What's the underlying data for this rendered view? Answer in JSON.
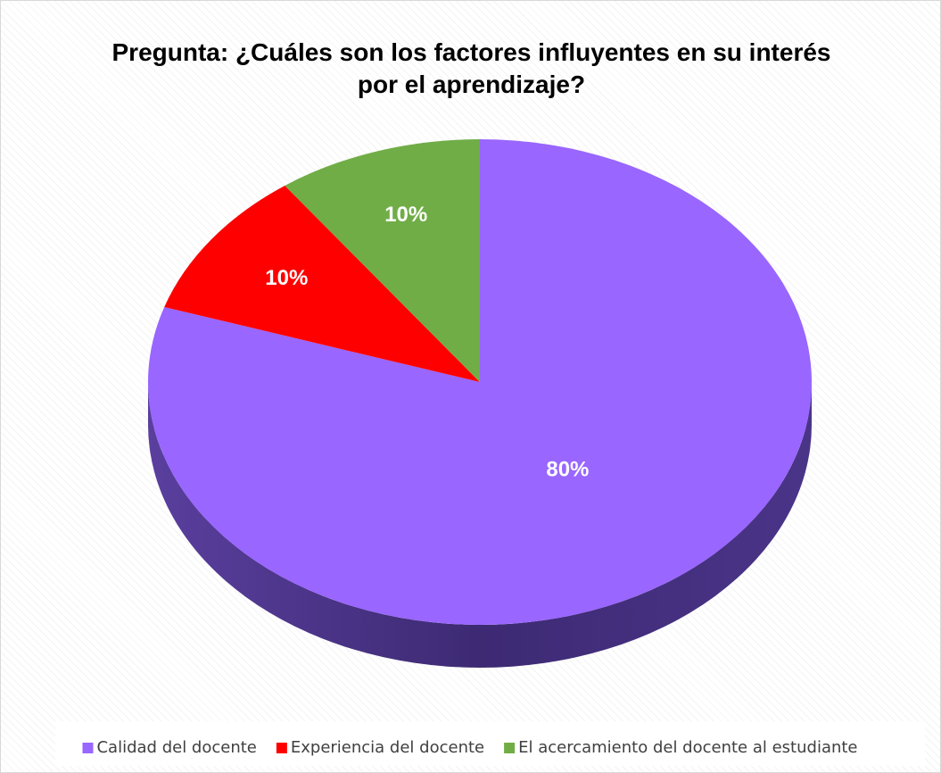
{
  "chart_data": {
    "type": "pie",
    "title": "Pregunta: ¿Cuáles son los factores influyentes en su interés por el aprendizaje?",
    "categories": [
      "Calidad del docente",
      "Experiencia del docente",
      "El acercamiento del docente al estudiante"
    ],
    "values": [
      80,
      10,
      10
    ],
    "value_labels": [
      "80%",
      "10%",
      "10%"
    ],
    "colors": [
      "#9966ff",
      "#ff0000",
      "#70ad47"
    ],
    "legend": "bottom"
  }
}
